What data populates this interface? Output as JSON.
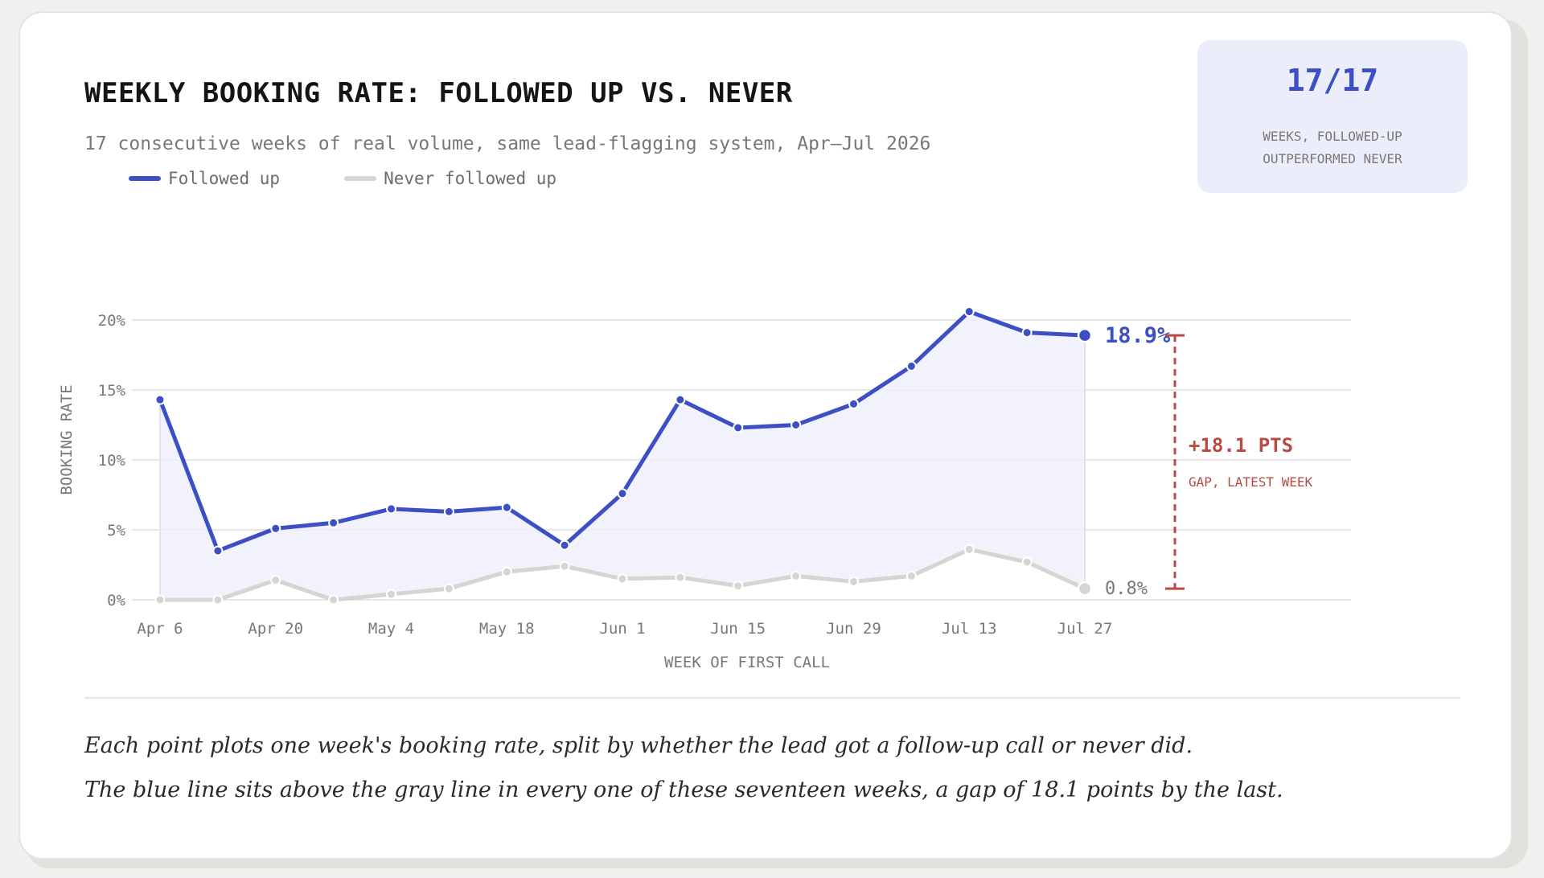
{
  "header": {
    "title": "WEEKLY BOOKING RATE: FOLLOWED UP VS. NEVER",
    "subtitle": "17 consecutive weeks of real volume, same lead-flagging system, Apr–Jul 2026"
  },
  "kpi": {
    "value": "17/17",
    "label": "WEEKS, FOLLOWED-UP\nOUTPERFORMED NEVER"
  },
  "caption": {
    "line1": "Each point plots one week's booking rate, split by whether the lead got a follow-up call or never did.",
    "line2": "The blue line sits above the gray line in every one of these seventeen weeks, a gap of 18.1 points by the last."
  },
  "colors": {
    "followed": "#3d4fc4",
    "never": "#d6d5d2",
    "gap": "#b84a44",
    "area": "#eef0fa"
  },
  "chart_data": {
    "type": "line",
    "title": "WEEKLY BOOKING RATE: FOLLOWED UP VS. NEVER",
    "xlabel": "WEEK OF FIRST CALL",
    "ylabel": "BOOKING RATE",
    "x": [
      "Apr 6",
      "Apr 13",
      "Apr 20",
      "Apr 27",
      "May 4",
      "May 11",
      "May 18",
      "May 25",
      "Jun 1",
      "Jun 8",
      "Jun 15",
      "Jun 22",
      "Jun 29",
      "Jul 6",
      "Jul 13",
      "Jul 20",
      "Jul 27"
    ],
    "x_tick_labels": [
      "Apr 6",
      "Apr 20",
      "May 4",
      "May 18",
      "Jun 1",
      "Jun 15",
      "Jun 29",
      "Jul 13",
      "Jul 27"
    ],
    "y_ticks": [
      0,
      5,
      10,
      15,
      20
    ],
    "y_tick_labels": [
      "0%",
      "5%",
      "10%",
      "15%",
      "20%"
    ],
    "ylim": [
      0,
      20
    ],
    "grid": true,
    "legend_position": "top-left",
    "series": [
      {
        "name": "Followed up",
        "values": [
          14.3,
          3.5,
          5.1,
          5.5,
          6.5,
          6.3,
          6.6,
          3.9,
          7.6,
          14.3,
          12.3,
          12.5,
          14.0,
          16.7,
          20.6,
          19.1,
          18.9
        ]
      },
      {
        "name": "Never followed up",
        "values": [
          0.0,
          0.0,
          1.4,
          0.0,
          0.4,
          0.8,
          2.0,
          2.4,
          1.5,
          1.6,
          1.0,
          1.7,
          1.3,
          1.7,
          3.6,
          2.7,
          0.8
        ]
      }
    ],
    "end_labels": [
      "18.9%",
      "0.8%"
    ],
    "annotation": {
      "gap_label": "+18.1 PTS",
      "gap_sublabel": "GAP, LATEST WEEK"
    }
  }
}
